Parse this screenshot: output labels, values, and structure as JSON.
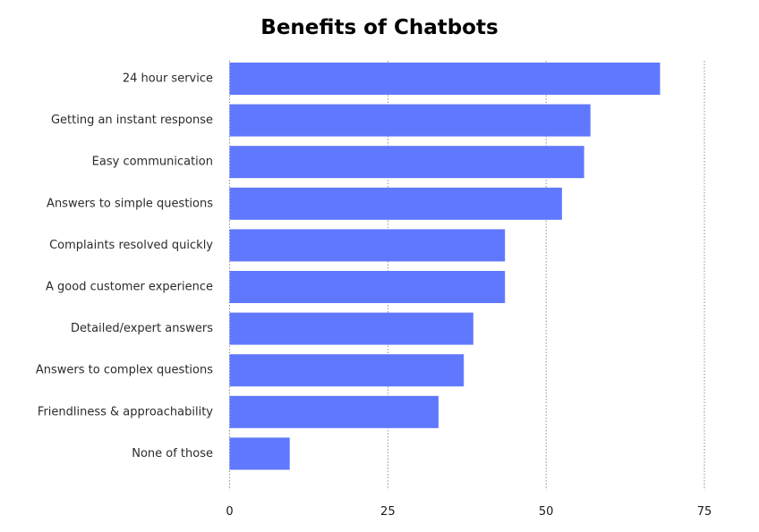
{
  "chart_data": {
    "type": "bar",
    "orientation": "horizontal",
    "title": "Benefits of Chatbots",
    "xlabel": "",
    "ylabel": "",
    "categories": [
      "24 hour service",
      "Getting an instant response",
      "Easy communication",
      "Answers to simple questions",
      "Complaints resolved quickly",
      "A good customer experience",
      "Detailed/expert answers",
      "Answers to complex questions",
      "Friendliness & approachability",
      "None of those"
    ],
    "values": [
      68,
      57,
      56,
      52.5,
      43.5,
      43.5,
      38.5,
      37,
      33,
      9.5
    ],
    "xlim": [
      0,
      75
    ],
    "xticks": [
      "0",
      "25",
      "50",
      "75"
    ],
    "grid": "vertical dotted",
    "legend": "none",
    "colors": {
      "bar": "#6078fd",
      "title": "#000000",
      "label": "#2b2b2b",
      "grid": "#8f8f8f"
    }
  }
}
